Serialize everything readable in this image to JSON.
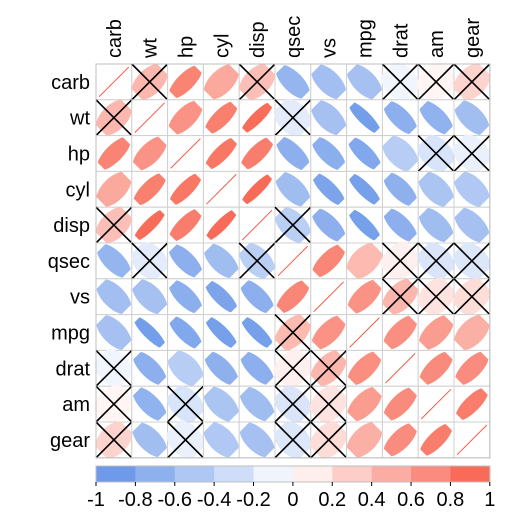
{
  "chart_data": {
    "type": "heatmap",
    "title": "",
    "variables": [
      "carb",
      "wt",
      "hp",
      "cyl",
      "disp",
      "qsec",
      "vs",
      "mpg",
      "drat",
      "am",
      "gear"
    ],
    "matrix": [
      [
        1.0,
        0.43,
        0.75,
        0.53,
        0.39,
        -0.66,
        -0.57,
        -0.55,
        -0.09,
        0.06,
        0.27
      ],
      [
        0.43,
        1.0,
        0.66,
        0.78,
        0.89,
        -0.17,
        -0.55,
        -0.87,
        -0.71,
        -0.69,
        -0.58
      ],
      [
        0.75,
        0.66,
        1.0,
        0.83,
        0.79,
        -0.71,
        -0.72,
        -0.78,
        -0.45,
        -0.24,
        -0.13
      ],
      [
        0.53,
        0.78,
        0.83,
        1.0,
        0.9,
        -0.59,
        -0.81,
        -0.85,
        -0.7,
        -0.52,
        -0.49
      ],
      [
        0.39,
        0.89,
        0.79,
        0.9,
        1.0,
        -0.43,
        -0.71,
        -0.85,
        -0.71,
        -0.59,
        -0.56
      ],
      [
        -0.66,
        -0.17,
        -0.71,
        -0.59,
        -0.43,
        1.0,
        0.74,
        0.42,
        0.09,
        -0.23,
        -0.21
      ],
      [
        -0.57,
        -0.55,
        -0.72,
        -0.81,
        -0.71,
        0.74,
        1.0,
        0.66,
        0.44,
        0.17,
        0.21
      ],
      [
        -0.55,
        -0.87,
        -0.78,
        -0.85,
        -0.85,
        0.42,
        0.66,
        1.0,
        0.68,
        0.6,
        0.48
      ],
      [
        -0.09,
        -0.71,
        -0.45,
        -0.7,
        -0.71,
        0.09,
        0.44,
        0.68,
        1.0,
        0.71,
        0.7
      ],
      [
        0.06,
        -0.69,
        -0.24,
        -0.52,
        -0.59,
        -0.23,
        0.17,
        0.6,
        0.71,
        1.0,
        0.79
      ],
      [
        0.27,
        -0.58,
        -0.13,
        -0.49,
        -0.56,
        -0.21,
        0.21,
        0.48,
        0.7,
        0.79,
        1.0
      ]
    ],
    "crossed_cells": [
      [
        0,
        1
      ],
      [
        0,
        4
      ],
      [
        0,
        8
      ],
      [
        0,
        9
      ],
      [
        0,
        10
      ],
      [
        1,
        0
      ],
      [
        1,
        5
      ],
      [
        2,
        9
      ],
      [
        2,
        10
      ],
      [
        4,
        0
      ],
      [
        4,
        5
      ],
      [
        5,
        1
      ],
      [
        5,
        4
      ],
      [
        5,
        8
      ],
      [
        5,
        9
      ],
      [
        5,
        10
      ],
      [
        6,
        8
      ],
      [
        6,
        9
      ],
      [
        6,
        10
      ],
      [
        7,
        5
      ],
      [
        8,
        0
      ],
      [
        8,
        5
      ],
      [
        8,
        6
      ],
      [
        9,
        0
      ],
      [
        9,
        2
      ],
      [
        9,
        5
      ],
      [
        9,
        6
      ],
      [
        10,
        0
      ],
      [
        10,
        2
      ],
      [
        10,
        5
      ],
      [
        10,
        6
      ]
    ],
    "color_scale": {
      "min": -1,
      "max": 1,
      "ticks": [
        "-1",
        "-0.8",
        "-0.6",
        "-0.4",
        "-0.2",
        "0",
        "0.2",
        "0.4",
        "0.6",
        "0.8",
        "1"
      ],
      "negative_color": "#5e8fe6",
      "neutral_color": "#ffffff",
      "positive_color": "#f75b46"
    },
    "grid": true,
    "legend": "bottom"
  }
}
